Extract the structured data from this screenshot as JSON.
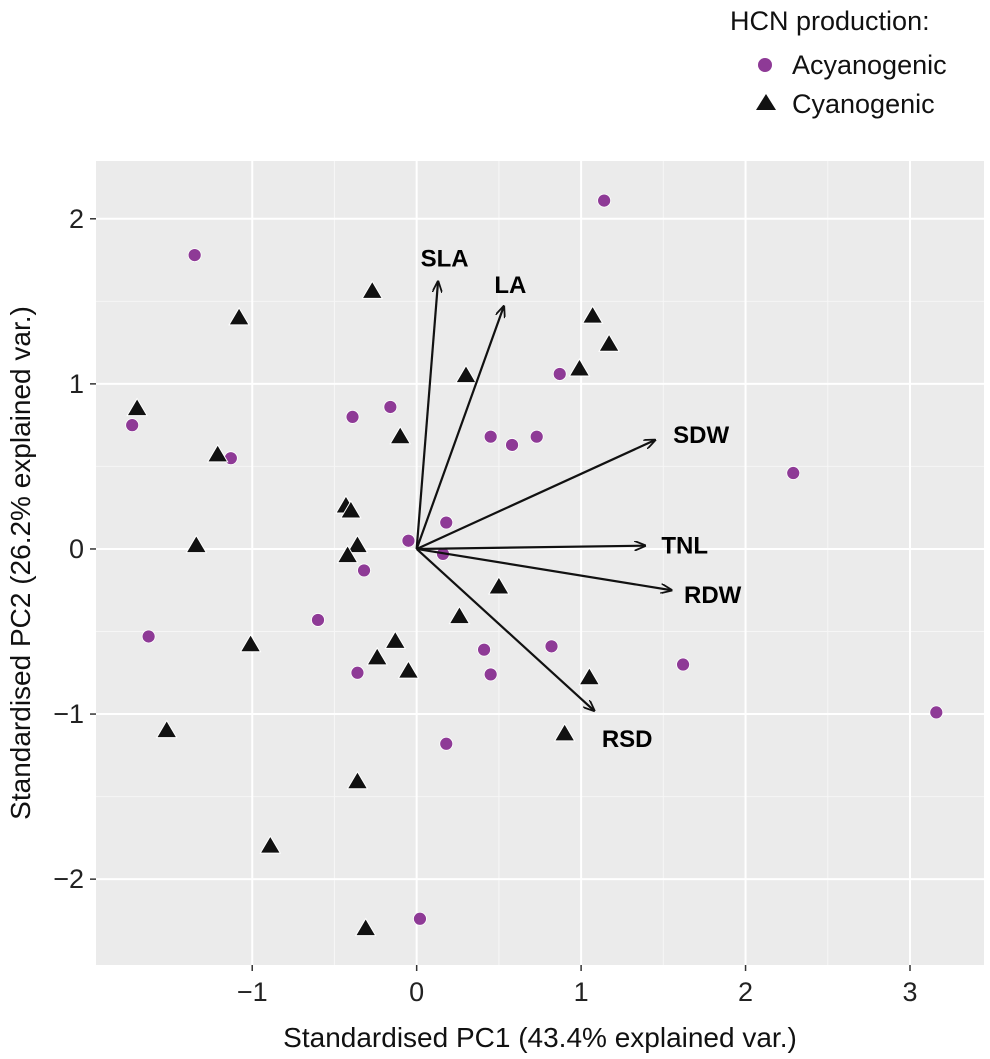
{
  "chart_data": {
    "type": "scatter",
    "title": "",
    "xlabel": "Standardised PC1 (43.4% explained var.)",
    "ylabel": "Standardised PC2 (26.2% explained var.)",
    "xlim": [
      -1.95,
      3.45
    ],
    "ylim": [
      -2.52,
      2.35
    ],
    "x_ticks": [
      -1,
      0,
      1,
      2,
      3
    ],
    "x_tick_labels": [
      "−1",
      "0",
      "1",
      "2",
      "3"
    ],
    "y_ticks": [
      -2,
      -1,
      0,
      1,
      2
    ],
    "y_tick_labels": [
      "−2",
      "−1",
      "0",
      "1",
      "2"
    ],
    "grid": true,
    "legend": {
      "title": "HCN production:",
      "placement": "top-right-outside",
      "entries": [
        {
          "label": "Acyanogenic",
          "marker": "circle",
          "color": "#8e3a96"
        },
        {
          "label": "Cyanogenic",
          "marker": "triangle",
          "color": "#111111"
        }
      ]
    },
    "series": [
      {
        "name": "Acyanogenic",
        "marker": "circle",
        "color": "#8e3a96",
        "points": [
          [
            1.14,
            2.11
          ],
          [
            -1.35,
            1.78
          ],
          [
            0.87,
            1.06
          ],
          [
            -0.39,
            0.8
          ],
          [
            -0.16,
            0.86
          ],
          [
            0.45,
            0.68
          ],
          [
            0.58,
            0.63
          ],
          [
            0.73,
            0.68
          ],
          [
            -1.73,
            0.75
          ],
          [
            -1.13,
            0.55
          ],
          [
            2.29,
            0.46
          ],
          [
            0.18,
            0.16
          ],
          [
            -0.05,
            0.05
          ],
          [
            0.16,
            -0.03
          ],
          [
            -0.32,
            -0.13
          ],
          [
            -0.6,
            -0.43
          ],
          [
            -1.63,
            -0.53
          ],
          [
            0.82,
            -0.59
          ],
          [
            0.41,
            -0.61
          ],
          [
            1.62,
            -0.7
          ],
          [
            -0.36,
            -0.75
          ],
          [
            0.45,
            -0.76
          ],
          [
            3.16,
            -0.99
          ],
          [
            0.18,
            -1.18
          ],
          [
            0.02,
            -2.24
          ]
        ]
      },
      {
        "name": "Cyanogenic",
        "marker": "triangle",
        "color": "#111111",
        "points": [
          [
            -0.27,
            1.56
          ],
          [
            -1.08,
            1.4
          ],
          [
            1.07,
            1.41
          ],
          [
            1.17,
            1.24
          ],
          [
            0.99,
            1.09
          ],
          [
            0.3,
            1.05
          ],
          [
            -1.7,
            0.85
          ],
          [
            -0.1,
            0.68
          ],
          [
            -1.21,
            0.57
          ],
          [
            -0.43,
            0.26
          ],
          [
            -0.4,
            0.23
          ],
          [
            -1.34,
            0.02
          ],
          [
            -0.36,
            0.02
          ],
          [
            -0.42,
            -0.04
          ],
          [
            0.5,
            -0.23
          ],
          [
            0.26,
            -0.41
          ],
          [
            -1.01,
            -0.58
          ],
          [
            -0.13,
            -0.56
          ],
          [
            -0.24,
            -0.66
          ],
          [
            -0.05,
            -0.74
          ],
          [
            1.05,
            -0.78
          ],
          [
            -1.52,
            -1.1
          ],
          [
            0.9,
            -1.12
          ],
          [
            -0.36,
            -1.41
          ],
          [
            -0.89,
            -1.8
          ],
          [
            -0.31,
            -2.3
          ]
        ]
      }
    ],
    "loadings": [
      {
        "name": "SLA",
        "dx": 0.13,
        "dy": 1.62,
        "label_x": 0.17,
        "label_y": 1.76
      },
      {
        "name": "LA",
        "dx": 0.53,
        "dy": 1.47,
        "label_x": 0.57,
        "label_y": 1.6
      },
      {
        "name": "SDW",
        "dx": 1.45,
        "dy": 0.66,
        "label_x": 1.73,
        "label_y": 0.69
      },
      {
        "name": "TNL",
        "dx": 1.39,
        "dy": 0.02,
        "label_x": 1.63,
        "label_y": 0.02
      },
      {
        "name": "RDW",
        "dx": 1.55,
        "dy": -0.25,
        "label_x": 1.8,
        "label_y": -0.28
      },
      {
        "name": "RSD",
        "dx": 1.08,
        "dy": -0.98,
        "label_x": 1.28,
        "label_y": -1.15
      }
    ]
  }
}
